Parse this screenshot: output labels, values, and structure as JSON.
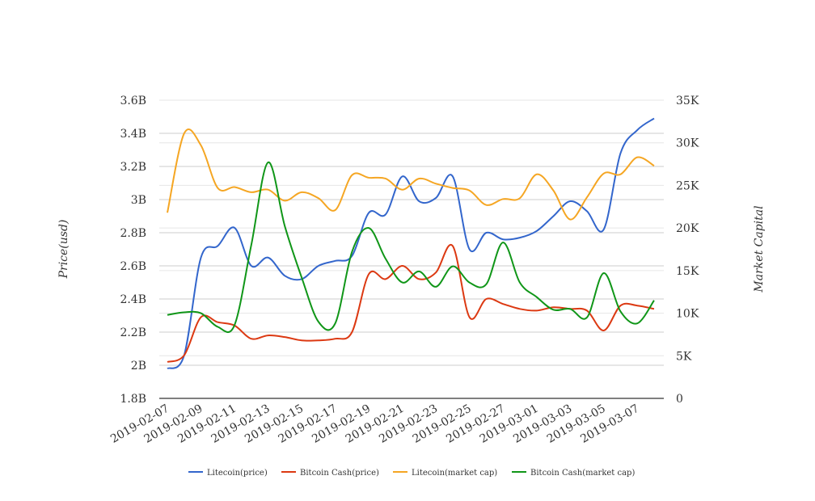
{
  "chart_data": {
    "type": "line",
    "title": "",
    "xlabel": "",
    "ylabel": "Price(usd)",
    "y2label": "Market Capital",
    "ylim": [
      1.8,
      3.6
    ],
    "y2lim": [
      0,
      35
    ],
    "yticks": [
      "1.8B",
      "2B",
      "2.2B",
      "2.4B",
      "2.6B",
      "2.8B",
      "3B",
      "3.2B",
      "3.4B",
      "3.6B"
    ],
    "y2ticks": [
      "0",
      "5K",
      "10K",
      "15K",
      "20K",
      "25K",
      "30K",
      "35K"
    ],
    "grid": true,
    "legend_position": "bottom",
    "x": [
      "2019-02-07",
      "2019-02-08",
      "2019-02-09",
      "2019-02-10",
      "2019-02-11",
      "2019-02-12",
      "2019-02-13",
      "2019-02-14",
      "2019-02-15",
      "2019-02-16",
      "2019-02-17",
      "2019-02-18",
      "2019-02-19",
      "2019-02-20",
      "2019-02-21",
      "2019-02-22",
      "2019-02-23",
      "2019-02-24",
      "2019-02-25",
      "2019-02-26",
      "2019-02-27",
      "2019-02-28",
      "2019-03-01",
      "2019-03-02",
      "2019-03-03",
      "2019-03-04",
      "2019-03-05",
      "2019-03-06",
      "2019-03-07",
      "2019-03-08"
    ],
    "xtick_labels": [
      "2019-02-07",
      "2019-02-09",
      "2019-02-11",
      "2019-02-13",
      "2019-02-15",
      "2019-02-17",
      "2019-02-19",
      "2019-02-21",
      "2019-02-23",
      "2019-02-25",
      "2019-02-27",
      "2019-03-01",
      "2019-03-03",
      "2019-03-05",
      "2019-03-07"
    ],
    "series": [
      {
        "name": "Litecoin(price)",
        "axis": "left",
        "color": "#3366cc",
        "values": [
          1.98,
          2.06,
          2.65,
          2.72,
          2.83,
          2.6,
          2.65,
          2.54,
          2.52,
          2.6,
          2.63,
          2.66,
          2.92,
          2.91,
          3.14,
          2.99,
          3.01,
          3.14,
          2.7,
          2.8,
          2.76,
          2.77,
          2.81,
          2.9,
          2.99,
          2.93,
          2.82,
          3.28,
          3.42,
          3.49
        ]
      },
      {
        "name": "Bitcoin Cash(price)",
        "axis": "left",
        "color": "#dc3912",
        "values": [
          2.02,
          2.06,
          2.29,
          2.26,
          2.24,
          2.16,
          2.18,
          2.17,
          2.15,
          2.15,
          2.16,
          2.2,
          2.55,
          2.52,
          2.6,
          2.52,
          2.56,
          2.72,
          2.29,
          2.4,
          2.37,
          2.34,
          2.33,
          2.35,
          2.34,
          2.33,
          2.21,
          2.36,
          2.36,
          2.34
        ]
      },
      {
        "name": "Litecoin(market cap)",
        "axis": "right",
        "color": "#f5a623",
        "values": [
          21.8,
          31.1,
          29.7,
          24.7,
          24.8,
          24.2,
          24.5,
          23.2,
          24.2,
          23.5,
          22.1,
          26.2,
          25.9,
          25.8,
          24.5,
          25.8,
          25.2,
          24.7,
          24.4,
          22.7,
          23.4,
          23.5,
          26.3,
          24.4,
          21.0,
          23.6,
          26.4,
          26.3,
          28.3,
          27.3
        ]
      },
      {
        "name": "Bitcoin Cash(market cap)",
        "axis": "right",
        "color": "#109618",
        "values": [
          9.8,
          10.1,
          10.0,
          8.4,
          8.6,
          18.0,
          27.7,
          20.2,
          14.2,
          9.0,
          8.8,
          17.2,
          20.0,
          16.4,
          13.6,
          14.9,
          13.1,
          15.5,
          13.6,
          13.4,
          18.3,
          13.6,
          11.9,
          10.4,
          10.5,
          9.5,
          14.7,
          10.2,
          8.8,
          11.5
        ]
      }
    ]
  }
}
